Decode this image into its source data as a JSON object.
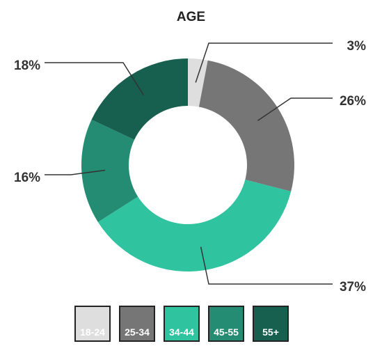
{
  "chart_data": {
    "type": "pie",
    "donut": true,
    "title": "AGE",
    "categories": [
      "18-24",
      "25-34",
      "34-44",
      "45-55",
      "55+"
    ],
    "values": [
      3,
      26,
      37,
      16,
      18
    ],
    "value_labels": [
      "3%",
      "26%",
      "37%",
      "16%",
      "18%"
    ],
    "colors": [
      "#dedede",
      "#767676",
      "#2fc3a0",
      "#238c72",
      "#175f4e"
    ],
    "legend_position": "bottom"
  }
}
